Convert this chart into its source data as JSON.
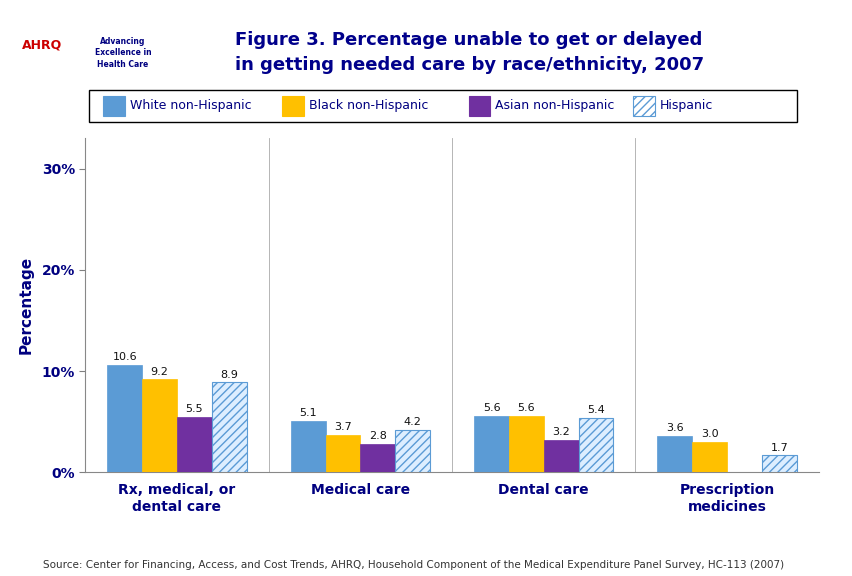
{
  "title": "Figure 3. Percentage unable to get or delayed\nin getting needed care by race/ethnicity, 2007",
  "categories": [
    "Rx, medical, or\ndental care",
    "Medical care",
    "Dental care",
    "Prescription\nmedicines"
  ],
  "series": [
    {
      "label": "White non-Hispanic",
      "color": "#5B9BD5",
      "hatch": null,
      "values": [
        10.6,
        5.1,
        5.6,
        3.6
      ]
    },
    {
      "label": "Black non-Hispanic",
      "color": "#FFC000",
      "hatch": null,
      "values": [
        9.2,
        3.7,
        5.6,
        3.0
      ]
    },
    {
      "label": "Asian non-Hispanic",
      "color": "#7030A0",
      "hatch": null,
      "values": [
        5.5,
        2.8,
        3.2,
        null
      ]
    },
    {
      "label": "Hispanic",
      "color": "#FFFFFF",
      "hatch": "////",
      "values": [
        8.9,
        4.2,
        5.4,
        1.7
      ]
    }
  ],
  "hatch_edge_color": "#5B9BD5",
  "ylabel": "Percentage",
  "ylim": [
    0,
    33
  ],
  "yticks": [
    0,
    10,
    20,
    30
  ],
  "ytick_labels": [
    "0%",
    "10%",
    "20%",
    "30%"
  ],
  "source_text": "Source: Center for Financing, Access, and Cost Trends, AHRQ, Household Component of the Medical Expenditure Panel Survey, HC-113 (2007)",
  "bar_width": 0.19,
  "fig_bg": "#FFFFFF",
  "plot_bg": "#FFFFFF",
  "axis_color": "#000080",
  "label_fontsize": 9.5,
  "tick_fontsize": 10,
  "title_fontsize": 13,
  "value_fontsize": 8,
  "top_stripe_color": "#00008B",
  "legend_box_color": "#000000"
}
